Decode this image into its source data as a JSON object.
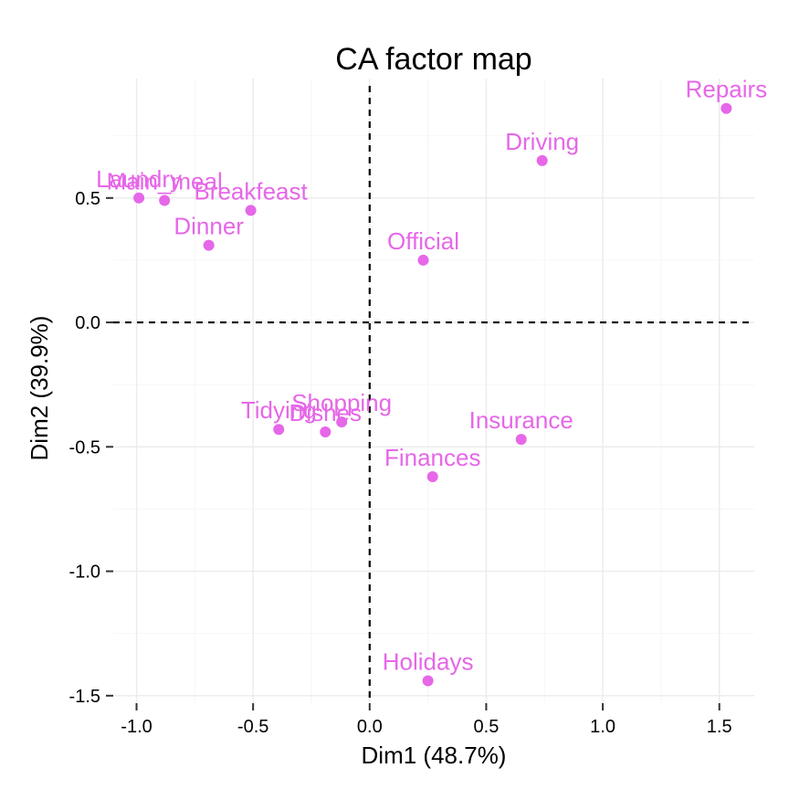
{
  "chart_data": {
    "type": "scatter",
    "title": "CA factor map",
    "xlabel": "Dim1 (48.7%)",
    "ylabel": "Dim2 (39.9%)",
    "xlim": [
      -1.1,
      1.65
    ],
    "ylim": [
      -1.53,
      0.98
    ],
    "x_ticks": [
      -1.0,
      -0.5,
      0.0,
      0.5,
      1.0,
      1.5
    ],
    "x_tick_labels": [
      "-1.0",
      "-0.5",
      "0.0",
      "0.5",
      "1.0",
      "1.5"
    ],
    "y_ticks": [
      -1.5,
      -1.0,
      -0.5,
      0.0,
      0.5
    ],
    "y_tick_labels": [
      "-1.5",
      "-1.0",
      "-0.5",
      "0.0",
      "0.5"
    ],
    "reference_lines": {
      "x": 0,
      "y": 0
    },
    "grid": true,
    "point_color": "#e667e8",
    "points": [
      {
        "label": "Laundry",
        "x": -0.99,
        "y": 0.5
      },
      {
        "label": "Main_meal",
        "x": -0.88,
        "y": 0.49
      },
      {
        "label": "Breakfeast",
        "x": -0.51,
        "y": 0.45
      },
      {
        "label": "Dinner",
        "x": -0.69,
        "y": 0.31
      },
      {
        "label": "Official",
        "x": 0.23,
        "y": 0.25
      },
      {
        "label": "Driving",
        "x": 0.74,
        "y": 0.65
      },
      {
        "label": "Repairs",
        "x": 1.53,
        "y": 0.86
      },
      {
        "label": "Tidying",
        "x": -0.39,
        "y": -0.43
      },
      {
        "label": "Dishes",
        "x": -0.19,
        "y": -0.44
      },
      {
        "label": "Shopping",
        "x": -0.12,
        "y": -0.4
      },
      {
        "label": "Insurance",
        "x": 0.65,
        "y": -0.47
      },
      {
        "label": "Finances",
        "x": 0.27,
        "y": -0.62
      },
      {
        "label": "Holidays",
        "x": 0.25,
        "y": -1.44
      }
    ]
  }
}
